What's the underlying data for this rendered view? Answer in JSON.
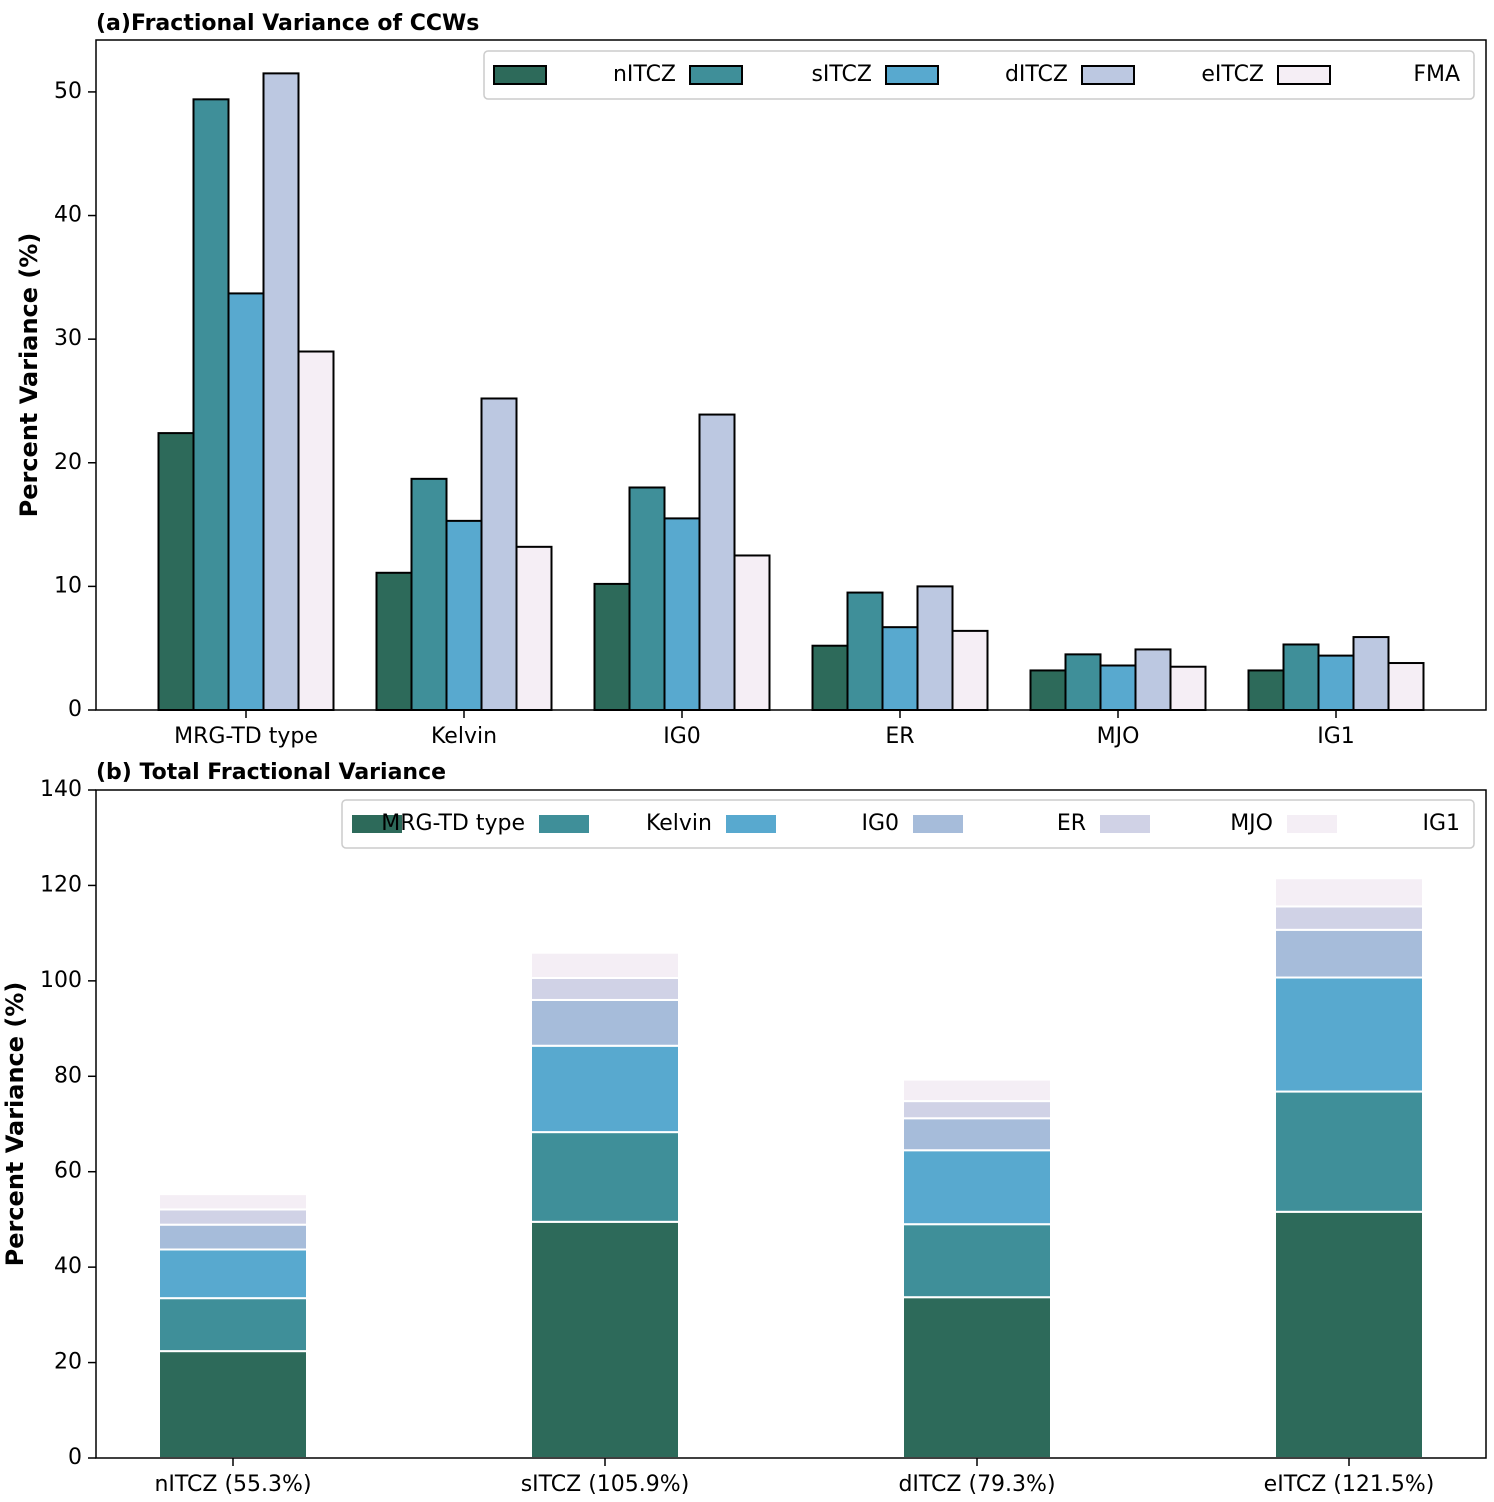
{
  "chart_data": [
    {
      "type": "bar",
      "title": "(a)Fractional Variance of CCWs",
      "y_label": "Percent Variance (%)",
      "categories": [
        "MRG-TD type",
        "Kelvin",
        "IG0",
        "ER",
        "MJO",
        "IG1"
      ],
      "series": [
        {
          "name": "nITCZ",
          "color": "#2d6a5a",
          "values": [
            22.4,
            11.1,
            10.2,
            5.2,
            3.2,
            3.2
          ]
        },
        {
          "name": "sITCZ",
          "color": "#3f8f99",
          "values": [
            49.4,
            18.7,
            18.0,
            9.5,
            4.5,
            5.3
          ]
        },
        {
          "name": "dITCZ",
          "color": "#58a9cf",
          "values": [
            33.7,
            15.3,
            15.5,
            6.7,
            3.6,
            4.4
          ]
        },
        {
          "name": "eITCZ",
          "color": "#bcc8e1",
          "values": [
            51.5,
            25.2,
            23.9,
            10.0,
            4.9,
            5.9
          ]
        },
        {
          "name": "FMA",
          "color": "#f5eef5",
          "values": [
            29.0,
            13.2,
            12.5,
            6.4,
            3.5,
            3.8
          ]
        }
      ],
      "ylim": [
        0,
        54.2
      ],
      "yticks": [
        0,
        10,
        20,
        30,
        40,
        50
      ],
      "legend": "upper right",
      "edge_color": "#000000"
    },
    {
      "type": "stacked_bar",
      "title": "(b) Total Fractional Variance",
      "y_label": "Percent Variance (%)",
      "categories": [
        "nITCZ (55.3%)",
        "sITCZ (105.9%)",
        "dITCZ (79.3%)",
        "eITCZ (121.5%)"
      ],
      "series": [
        {
          "name": "MRG-TD type",
          "color": "#2d6a5a",
          "values": [
            22.4,
            49.5,
            33.7,
            51.6
          ]
        },
        {
          "name": "Kelvin",
          "color": "#3f8f99",
          "values": [
            11.1,
            18.8,
            15.3,
            25.2
          ]
        },
        {
          "name": "IG0",
          "color": "#58a9cf",
          "values": [
            10.2,
            18.1,
            15.5,
            23.9
          ]
        },
        {
          "name": "ER",
          "color": "#a6bcda",
          "values": [
            5.2,
            9.6,
            6.7,
            10.0
          ]
        },
        {
          "name": "MJO",
          "color": "#d0d2e6",
          "values": [
            3.2,
            4.6,
            3.6,
            4.9
          ]
        },
        {
          "name": "IG1",
          "color": "#f4eef5",
          "values": [
            3.2,
            5.3,
            4.5,
            5.9
          ]
        }
      ],
      "ylim": [
        0,
        140
      ],
      "yticks": [
        0,
        20,
        40,
        60,
        80,
        100,
        120,
        140
      ],
      "legend": "upper right",
      "edge_color": "#ffffff"
    }
  ]
}
